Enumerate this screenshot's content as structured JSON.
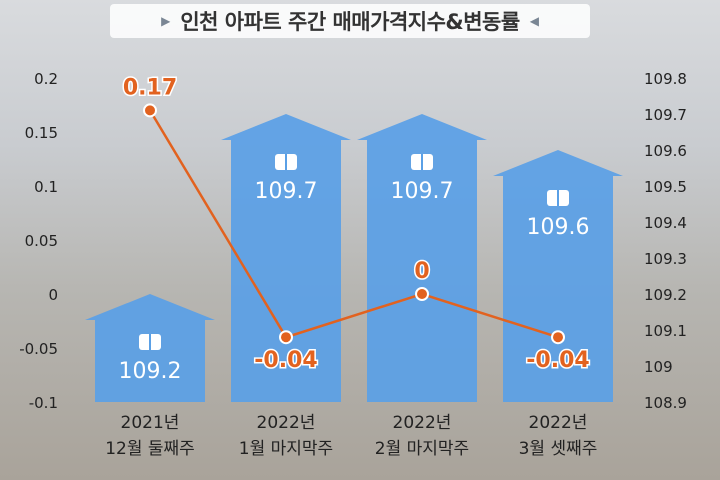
{
  "chart_data": {
    "type": "bar",
    "title": "인천 아파트 주간 매매가격지수&변동률",
    "categories": [
      [
        "2021년",
        "12월 둘째주"
      ],
      [
        "2022년",
        "1월 마지막주"
      ],
      [
        "2022년",
        "2월 마지막주"
      ],
      [
        "2022년",
        "3월 셋째주"
      ]
    ],
    "series": [
      {
        "type": "bar",
        "axis": "right",
        "values": [
          109.2,
          109.7,
          109.7,
          109.6
        ],
        "labels": [
          "109.2",
          "109.7",
          "109.7",
          "109.6"
        ],
        "color": "#5aa0e6"
      },
      {
        "type": "line",
        "axis": "left",
        "values": [
          0.17,
          -0.04,
          0,
          -0.04
        ],
        "labels": [
          "0.17",
          "-0.04",
          "0",
          "-0.04"
        ],
        "color": "#e2621f"
      }
    ],
    "left_axis": {
      "ticks": [
        0.2,
        0.15,
        0.1,
        0.05,
        0,
        -0.05,
        -0.1
      ],
      "labels": [
        "0.2",
        "0.15",
        "0.1",
        "0.05",
        "0",
        "-0.05",
        "-0.1"
      ],
      "ylim": [
        -0.1,
        0.2
      ]
    },
    "right_axis": {
      "ticks": [
        109.8,
        109.7,
        109.6,
        109.5,
        109.4,
        109.3,
        109.2,
        109.1,
        109,
        108.9
      ],
      "labels": [
        "109.8",
        "109.7",
        "109.6",
        "109.5",
        "109.4",
        "109.3",
        "109.2",
        "109.1",
        "109",
        "108.9"
      ],
      "ylim": [
        108.9,
        109.8
      ]
    },
    "colors": {
      "bar": "#5aa0e6",
      "line": "#e2621f",
      "title_marker": "#7a8694"
    },
    "icons": {
      "bar_marker": "book-icon",
      "title_left": "triangle-right-icon",
      "title_right": "triangle-left-icon"
    }
  }
}
